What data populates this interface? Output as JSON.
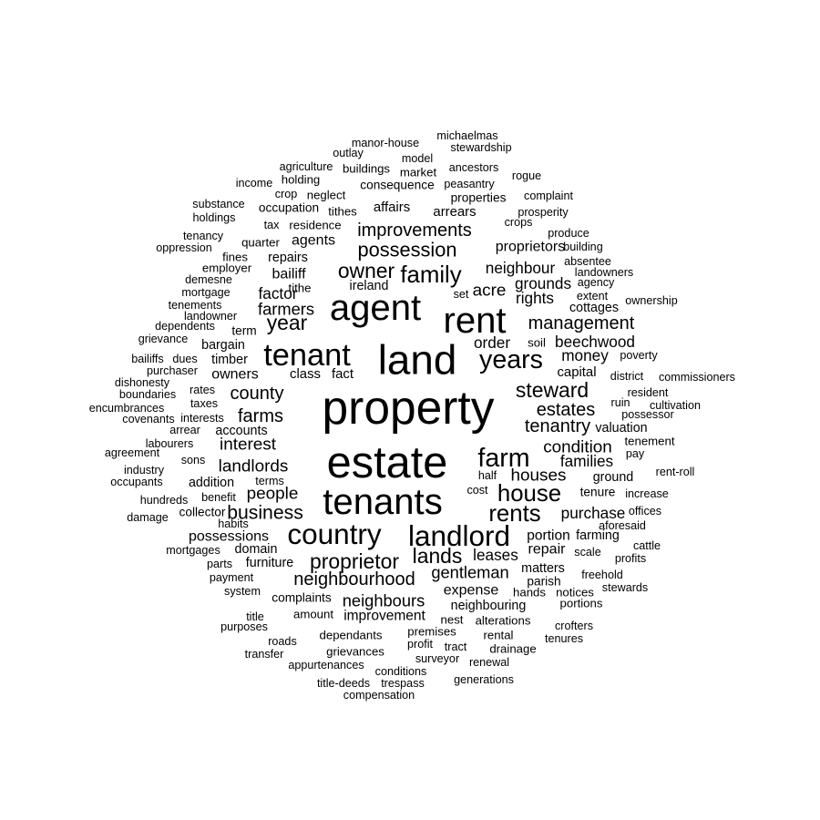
{
  "wordcloud": {
    "words": [
      {
        "text": "property",
        "size": 9
      },
      {
        "text": "estate",
        "size": 8.5
      },
      {
        "text": "land",
        "size": 8
      },
      {
        "text": "tenants",
        "size": 7
      },
      {
        "text": "agent",
        "size": 7
      },
      {
        "text": "rent",
        "size": 7
      },
      {
        "text": "tenant",
        "size": 6
      },
      {
        "text": "years",
        "size": 5
      },
      {
        "text": "country",
        "size": 5.5
      },
      {
        "text": "landlord",
        "size": 5.5
      },
      {
        "text": "farm",
        "size": 5
      },
      {
        "text": "house",
        "size": 4.5
      },
      {
        "text": "family",
        "size": 4.5
      },
      {
        "text": "rents",
        "size": 4.5
      },
      {
        "text": "owner",
        "size": 4
      },
      {
        "text": "proprietor",
        "size": 4
      },
      {
        "text": "lands",
        "size": 4
      },
      {
        "text": "year",
        "size": 4
      },
      {
        "text": "steward",
        "size": 4
      },
      {
        "text": "possession",
        "size": 3.8
      },
      {
        "text": "business",
        "size": 3.7
      },
      {
        "text": "improvements",
        "size": 3.5
      },
      {
        "text": "neighbourhood",
        "size": 3.5
      },
      {
        "text": "farms",
        "size": 3.5
      },
      {
        "text": "county",
        "size": 3.5
      },
      {
        "text": "estates",
        "size": 3.5
      },
      {
        "text": "tenantry",
        "size": 3.5
      },
      {
        "text": "management",
        "size": 3.5
      },
      {
        "text": "interest",
        "size": 3.3
      },
      {
        "text": "landlords",
        "size": 3.3
      },
      {
        "text": "condition",
        "size": 3.3
      },
      {
        "text": "houses",
        "size": 3.3
      },
      {
        "text": "people",
        "size": 3.3
      },
      {
        "text": "acre",
        "size": 3.3
      },
      {
        "text": "farmers",
        "size": 3.2
      },
      {
        "text": "gentleman",
        "size": 3.2
      },
      {
        "text": "neighbours",
        "size": 3.2
      },
      {
        "text": "neighbour",
        "size": 3
      },
      {
        "text": "money",
        "size": 3
      },
      {
        "text": "purchase",
        "size": 3
      },
      {
        "text": "beechwood",
        "size": 3
      },
      {
        "text": "factor",
        "size": 3
      },
      {
        "text": "leases",
        "size": 3
      },
      {
        "text": "families",
        "size": 3
      },
      {
        "text": "order",
        "size": 3
      },
      {
        "text": "rights",
        "size": 3
      },
      {
        "text": "grounds",
        "size": 3
      },
      {
        "text": "proprietors",
        "size": 2.8
      },
      {
        "text": "agents",
        "size": 2.8
      },
      {
        "text": "bailiff",
        "size": 2.8
      },
      {
        "text": "repair",
        "size": 2.8
      },
      {
        "text": "expense",
        "size": 2.8
      },
      {
        "text": "owners",
        "size": 2.8
      },
      {
        "text": "possessions",
        "size": 2.8
      },
      {
        "text": "improvement",
        "size": 2.7
      },
      {
        "text": "portion",
        "size": 2.7
      },
      {
        "text": "fact",
        "size": 2.6
      },
      {
        "text": "class",
        "size": 2.6
      },
      {
        "text": "capital",
        "size": 2.6
      },
      {
        "text": "affairs",
        "size": 2.6
      },
      {
        "text": "arrears",
        "size": 2.6
      },
      {
        "text": "repairs",
        "size": 2.5
      },
      {
        "text": "ireland",
        "size": 2.5
      },
      {
        "text": "accounts",
        "size": 2.5
      },
      {
        "text": "neighbouring",
        "size": 2.5
      },
      {
        "text": "furniture",
        "size": 2.5
      },
      {
        "text": "domain",
        "size": 2.5
      },
      {
        "text": "bargain",
        "size": 2.5
      },
      {
        "text": "timber",
        "size": 2.5
      },
      {
        "text": "addition",
        "size": 2.5
      },
      {
        "text": "valuation",
        "size": 2.5
      },
      {
        "text": "cottages",
        "size": 2.5
      },
      {
        "text": "ground",
        "size": 2.5
      },
      {
        "text": "matters",
        "size": 2.5
      },
      {
        "text": "farming",
        "size": 2.5
      },
      {
        "text": "parish",
        "size": 2.4
      },
      {
        "text": "complaints",
        "size": 2.4
      },
      {
        "text": "tenure",
        "size": 2.4
      },
      {
        "text": "consequence",
        "size": 2.4
      },
      {
        "text": "properties",
        "size": 2.4
      },
      {
        "text": "occupation",
        "size": 2.4
      },
      {
        "text": "term",
        "size": 2.4
      },
      {
        "text": "collector",
        "size": 2.4
      },
      {
        "text": "tenement",
        "size": 2.3
      },
      {
        "text": "neglect",
        "size": 2.3
      },
      {
        "text": "residence",
        "size": 2.3
      },
      {
        "text": "tithes",
        "size": 2.3
      },
      {
        "text": "tithe",
        "size": 2.3
      },
      {
        "text": "quarter",
        "size": 2.3
      },
      {
        "text": "soil",
        "size": 2.3
      },
      {
        "text": "dependants",
        "size": 2.3
      },
      {
        "text": "premises",
        "size": 2.3
      },
      {
        "text": "alterations",
        "size": 2.3
      },
      {
        "text": "hands",
        "size": 2.3
      },
      {
        "text": "notices",
        "size": 2.3
      },
      {
        "text": "portions",
        "size": 2.3
      },
      {
        "text": "rental",
        "size": 2.3
      },
      {
        "text": "drainage",
        "size": 2.3
      },
      {
        "text": "grievances",
        "size": 2.3
      },
      {
        "text": "amount",
        "size": 2.3
      },
      {
        "text": "nest",
        "size": 2.3
      },
      {
        "text": "employer",
        "size": 2.3
      },
      {
        "text": "fines",
        "size": 2.3
      },
      {
        "text": "market",
        "size": 2.3
      },
      {
        "text": "holding",
        "size": 2.3
      },
      {
        "text": "buildings",
        "size": 2.3
      },
      {
        "text": "agriculture",
        "size": 2.2
      },
      {
        "text": "peasantry",
        "size": 2.2
      },
      {
        "text": "ancestors",
        "size": 2.2
      },
      {
        "text": "rogue",
        "size": 2.2
      },
      {
        "text": "complaint",
        "size": 2.2
      },
      {
        "text": "prosperity",
        "size": 2.2
      },
      {
        "text": "crops",
        "size": 2.2
      },
      {
        "text": "produce",
        "size": 2.2
      },
      {
        "text": "building",
        "size": 2.2
      },
      {
        "text": "absentee",
        "size": 2.2
      },
      {
        "text": "landowners",
        "size": 2.2
      },
      {
        "text": "agency",
        "size": 2.2
      },
      {
        "text": "extent",
        "size": 2.2
      },
      {
        "text": "ownership",
        "size": 2.2
      },
      {
        "text": "poverty",
        "size": 2.2
      },
      {
        "text": "district",
        "size": 2.2
      },
      {
        "text": "commissioners",
        "size": 2.2
      },
      {
        "text": "resident",
        "size": 2.2
      },
      {
        "text": "cultivation",
        "size": 2.2
      },
      {
        "text": "possessor",
        "size": 2.2
      },
      {
        "text": "ruin",
        "size": 2.2
      },
      {
        "text": "pay",
        "size": 2.2
      },
      {
        "text": "rent-roll",
        "size": 2.2
      },
      {
        "text": "increase",
        "size": 2.2
      },
      {
        "text": "offices",
        "size": 2.2
      },
      {
        "text": "aforesaid",
        "size": 2.2
      },
      {
        "text": "cattle",
        "size": 2.2
      },
      {
        "text": "profits",
        "size": 2.2
      },
      {
        "text": "scale",
        "size": 2.2
      },
      {
        "text": "freehold",
        "size": 2.2
      },
      {
        "text": "stewards",
        "size": 2.2
      },
      {
        "text": "crofters",
        "size": 2.2
      },
      {
        "text": "tenures",
        "size": 2.2
      },
      {
        "text": "renewal",
        "size": 2.2
      },
      {
        "text": "generations",
        "size": 2.2
      },
      {
        "text": "tract",
        "size": 2.2
      },
      {
        "text": "surveyor",
        "size": 2.2
      },
      {
        "text": "profit",
        "size": 2.2
      },
      {
        "text": "conditions",
        "size": 2.2
      },
      {
        "text": "trespass",
        "size": 2.2
      },
      {
        "text": "title-deeds",
        "size": 2.2
      },
      {
        "text": "compensation",
        "size": 2.2
      },
      {
        "text": "appurtenances",
        "size": 2.2
      },
      {
        "text": "transfer",
        "size": 2.2
      },
      {
        "text": "roads",
        "size": 2.2
      },
      {
        "text": "purposes",
        "size": 2.2
      },
      {
        "text": "title",
        "size": 2.2
      },
      {
        "text": "system",
        "size": 2.2
      },
      {
        "text": "payment",
        "size": 2.2
      },
      {
        "text": "parts",
        "size": 2.2
      },
      {
        "text": "mortgages",
        "size": 2.2
      },
      {
        "text": "habits",
        "size": 2.2
      },
      {
        "text": "damage",
        "size": 2.2
      },
      {
        "text": "hundreds",
        "size": 2.2
      },
      {
        "text": "benefit",
        "size": 2.2
      },
      {
        "text": "terms",
        "size": 2.2
      },
      {
        "text": "occupants",
        "size": 2.2
      },
      {
        "text": "industry",
        "size": 2.2
      },
      {
        "text": "agreement",
        "size": 2.2
      },
      {
        "text": "sons",
        "size": 2.2
      },
      {
        "text": "labourers",
        "size": 2.2
      },
      {
        "text": "arrear",
        "size": 2.2
      },
      {
        "text": "covenants",
        "size": 2.2
      },
      {
        "text": "interests",
        "size": 2.2
      },
      {
        "text": "encumbrances",
        "size": 2.2
      },
      {
        "text": "taxes",
        "size": 2.2
      },
      {
        "text": "boundaries",
        "size": 2.2
      },
      {
        "text": "rates",
        "size": 2.2
      },
      {
        "text": "dishonesty",
        "size": 2.2
      },
      {
        "text": "purchaser",
        "size": 2.2
      },
      {
        "text": "bailiffs",
        "size": 2.2
      },
      {
        "text": "dues",
        "size": 2.2
      },
      {
        "text": "grievance",
        "size": 2.2
      },
      {
        "text": "dependents",
        "size": 2.2
      },
      {
        "text": "landowner",
        "size": 2.2
      },
      {
        "text": "tenements",
        "size": 2.2
      },
      {
        "text": "mortgage",
        "size": 2.2
      },
      {
        "text": "demesne",
        "size": 2.2
      },
      {
        "text": "oppression",
        "size": 2.2
      },
      {
        "text": "tenancy",
        "size": 2.2
      },
      {
        "text": "holdings",
        "size": 2.2
      },
      {
        "text": "substance",
        "size": 2.2
      },
      {
        "text": "income",
        "size": 2.2
      },
      {
        "text": "crop",
        "size": 2.2
      },
      {
        "text": "tax",
        "size": 2.2
      },
      {
        "text": "outlay",
        "size": 2.2
      },
      {
        "text": "manor-house",
        "size": 2.2
      },
      {
        "text": "model",
        "size": 2.2
      },
      {
        "text": "michaelmas",
        "size": 2.2
      },
      {
        "text": "stewardship",
        "size": 2.2
      },
      {
        "text": "half",
        "size": 2.2
      },
      {
        "text": "cost",
        "size": 2.2
      },
      {
        "text": "set",
        "size": 2.2
      }
    ]
  }
}
